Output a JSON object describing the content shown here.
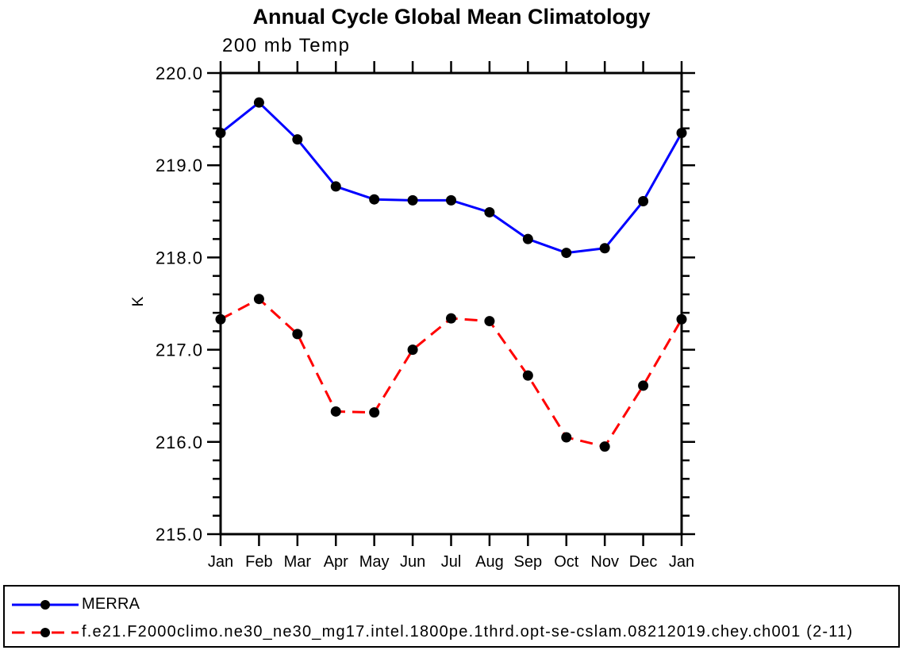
{
  "page": {
    "background": "#ffffff",
    "text_color": "#000000"
  },
  "chart_data": {
    "type": "line",
    "title": "Annual Cycle Global Mean Climatology",
    "subtitle": "200 mb Temp",
    "xlabel": "",
    "ylabel": "K",
    "categories": [
      "Jan",
      "Feb",
      "Mar",
      "Apr",
      "May",
      "Jun",
      "Jul",
      "Aug",
      "Sep",
      "Oct",
      "Nov",
      "Dec",
      "Jan"
    ],
    "ylim": [
      215.0,
      220.0
    ],
    "ytick_labels": [
      "215.0",
      "216.0",
      "217.0",
      "218.0",
      "219.0",
      "220.0"
    ],
    "ytick_major_interval": 1.0,
    "ytick_minor_interval": 0.2,
    "grid": false,
    "legend_position": "bottom-outside-box",
    "frame_color": "#000000",
    "series": [
      {
        "name": "MERRA",
        "color": "#0000ff",
        "line_style": "solid",
        "line_width": 3,
        "marker": "filled-circle",
        "marker_color": "#000000",
        "values": [
          219.35,
          219.68,
          219.28,
          218.77,
          218.63,
          218.62,
          218.62,
          218.49,
          218.2,
          218.05,
          218.1,
          218.61,
          219.35
        ]
      },
      {
        "name": "f.e21.F2000climo.ne30_ne30_mg17.intel.1800pe.1thrd.opt-se-cslam.08212019.chey.ch001 (2-11)",
        "color": "#ff0000",
        "line_style": "dashed",
        "line_width": 3,
        "marker": "filled-circle",
        "marker_color": "#000000",
        "values": [
          217.33,
          217.55,
          217.17,
          216.33,
          216.32,
          217.0,
          217.34,
          217.31,
          216.72,
          216.05,
          215.95,
          216.61,
          217.33
        ]
      }
    ]
  }
}
